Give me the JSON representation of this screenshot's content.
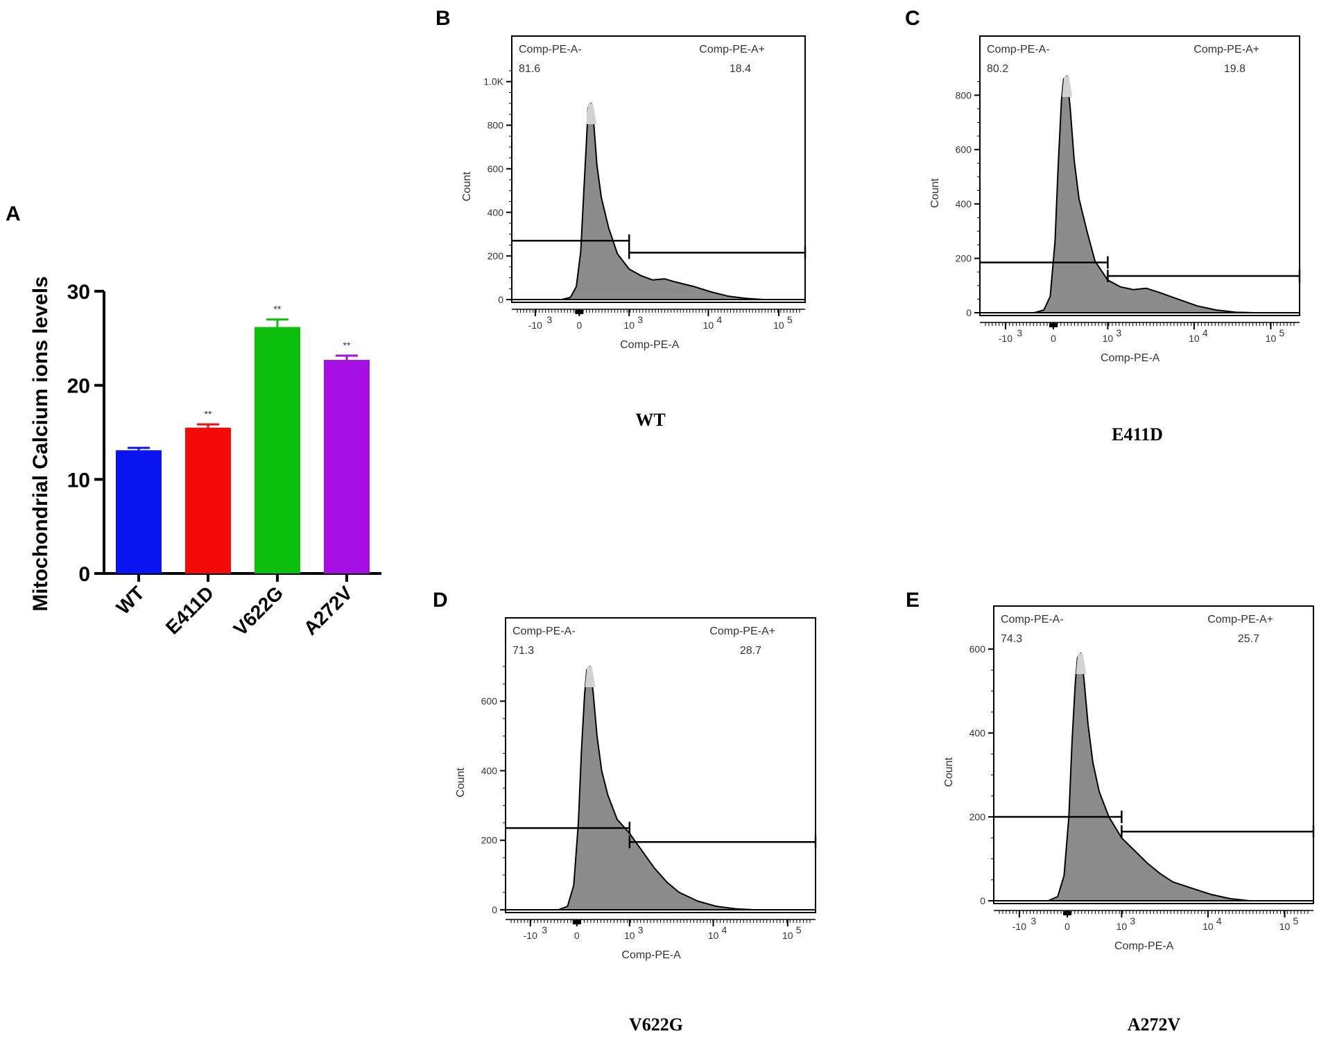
{
  "panel_a": {
    "letter": "A",
    "chart_data": {
      "type": "bar",
      "title": "",
      "xlabel": "",
      "ylabel": "Mitochondrial Calcium ions levels",
      "ylim": [
        0,
        30
      ],
      "yticks": [
        0,
        10,
        20,
        30
      ],
      "categories": [
        "WT",
        "E411D",
        "V622G",
        "A272V"
      ],
      "values": [
        13.1,
        15.5,
        26.2,
        22.7
      ],
      "errors": [
        0.25,
        0.35,
        0.8,
        0.45
      ],
      "significance": [
        "",
        "**",
        "**",
        "**"
      ],
      "colors": [
        "#0A14F0",
        "#F50A0A",
        "#0CBE0C",
        "#A50FE1"
      ]
    }
  },
  "flow_panels": [
    {
      "letter": "B",
      "caption": "WT",
      "chart_data": {
        "type": "area",
        "xlabel": "Comp-PE-A",
        "ylabel": "Count",
        "y_max": 1050,
        "yticks": [
          {
            "value": 0,
            "label": "0"
          },
          {
            "value": 200,
            "label": "200"
          },
          {
            "value": 400,
            "label": "400"
          },
          {
            "value": 600,
            "label": "600"
          },
          {
            "value": 800,
            "label": "800"
          },
          {
            "value": 1000,
            "label": "1.0K"
          }
        ],
        "gate_neg_label": "Comp-PE-A-",
        "gate_neg_value": "81.6",
        "gate_pos_label": "Comp-PE-A+",
        "gate_pos_value": "18.4",
        "gate_neg_height": 270,
        "gate_pos_height": 215,
        "histogram": [
          [
            0.0,
            0
          ],
          [
            0.17,
            0
          ],
          [
            0.2,
            10
          ],
          [
            0.22,
            60
          ],
          [
            0.235,
            220
          ],
          [
            0.245,
            480
          ],
          [
            0.255,
            740
          ],
          [
            0.26,
            880
          ],
          [
            0.27,
            900
          ],
          [
            0.28,
            800
          ],
          [
            0.29,
            620
          ],
          [
            0.305,
            470
          ],
          [
            0.33,
            330
          ],
          [
            0.36,
            210
          ],
          [
            0.4,
            140
          ],
          [
            0.44,
            110
          ],
          [
            0.48,
            90
          ],
          [
            0.52,
            95
          ],
          [
            0.56,
            80
          ],
          [
            0.62,
            60
          ],
          [
            0.68,
            35
          ],
          [
            0.74,
            15
          ],
          [
            0.8,
            5
          ],
          [
            0.86,
            0
          ],
          [
            1.0,
            0
          ]
        ]
      }
    },
    {
      "letter": "C",
      "caption": "E411D",
      "chart_data": {
        "type": "area",
        "xlabel": "Comp-PE-A",
        "ylabel": "Count",
        "y_max": 890,
        "yticks": [
          {
            "value": 0,
            "label": "0"
          },
          {
            "value": 200,
            "label": "200"
          },
          {
            "value": 400,
            "label": "400"
          },
          {
            "value": 600,
            "label": "600"
          },
          {
            "value": 800,
            "label": "800"
          }
        ],
        "gate_neg_label": "Comp-PE-A-",
        "gate_neg_value": "80.2",
        "gate_pos_label": "Comp-PE-A+",
        "gate_pos_value": "19.8",
        "gate_neg_height": 185,
        "gate_pos_height": 135,
        "histogram": [
          [
            0.0,
            0
          ],
          [
            0.17,
            0
          ],
          [
            0.2,
            10
          ],
          [
            0.22,
            60
          ],
          [
            0.235,
            260
          ],
          [
            0.245,
            540
          ],
          [
            0.255,
            780
          ],
          [
            0.262,
            860
          ],
          [
            0.272,
            870
          ],
          [
            0.282,
            760
          ],
          [
            0.295,
            560
          ],
          [
            0.31,
            420
          ],
          [
            0.335,
            300
          ],
          [
            0.36,
            190
          ],
          [
            0.4,
            120
          ],
          [
            0.44,
            95
          ],
          [
            0.48,
            85
          ],
          [
            0.52,
            90
          ],
          [
            0.56,
            75
          ],
          [
            0.62,
            50
          ],
          [
            0.68,
            25
          ],
          [
            0.74,
            10
          ],
          [
            0.8,
            2
          ],
          [
            0.86,
            0
          ],
          [
            1.0,
            0
          ]
        ]
      }
    },
    {
      "letter": "D",
      "caption": "V622G",
      "chart_data": {
        "type": "area",
        "xlabel": "Comp-PE-A",
        "ylabel": "Count",
        "y_max": 740,
        "yticks": [
          {
            "value": 0,
            "label": "0"
          },
          {
            "value": 200,
            "label": "200"
          },
          {
            "value": 400,
            "label": "400"
          },
          {
            "value": 600,
            "label": "600"
          }
        ],
        "gate_neg_label": "Comp-PE-A-",
        "gate_neg_value": "71.3",
        "gate_pos_label": "Comp-PE-A+",
        "gate_pos_value": "28.7",
        "gate_neg_height": 235,
        "gate_pos_height": 195,
        "histogram": [
          [
            0.0,
            0
          ],
          [
            0.17,
            0
          ],
          [
            0.2,
            10
          ],
          [
            0.22,
            70
          ],
          [
            0.235,
            250
          ],
          [
            0.245,
            460
          ],
          [
            0.255,
            620
          ],
          [
            0.262,
            690
          ],
          [
            0.272,
            700
          ],
          [
            0.282,
            630
          ],
          [
            0.295,
            500
          ],
          [
            0.31,
            400
          ],
          [
            0.33,
            330
          ],
          [
            0.36,
            260
          ],
          [
            0.4,
            220
          ],
          [
            0.44,
            170
          ],
          [
            0.48,
            120
          ],
          [
            0.52,
            80
          ],
          [
            0.56,
            50
          ],
          [
            0.62,
            25
          ],
          [
            0.68,
            10
          ],
          [
            0.74,
            3
          ],
          [
            0.8,
            0
          ],
          [
            1.0,
            0
          ]
        ]
      }
    },
    {
      "letter": "E",
      "caption": "A272V",
      "chart_data": {
        "type": "area",
        "xlabel": "Comp-PE-A",
        "ylabel": "Count",
        "y_max": 620,
        "yticks": [
          {
            "value": 0,
            "label": "0"
          },
          {
            "value": 200,
            "label": "200"
          },
          {
            "value": 400,
            "label": "400"
          },
          {
            "value": 600,
            "label": "600"
          }
        ],
        "gate_neg_label": "Comp-PE-A-",
        "gate_neg_value": "74.3",
        "gate_pos_label": "Comp-PE-A+",
        "gate_pos_value": "25.7",
        "gate_neg_height": 200,
        "gate_pos_height": 165,
        "histogram": [
          [
            0.0,
            0
          ],
          [
            0.17,
            0
          ],
          [
            0.2,
            10
          ],
          [
            0.22,
            60
          ],
          [
            0.235,
            200
          ],
          [
            0.245,
            380
          ],
          [
            0.255,
            520
          ],
          [
            0.262,
            580
          ],
          [
            0.272,
            590
          ],
          [
            0.282,
            530
          ],
          [
            0.295,
            420
          ],
          [
            0.31,
            330
          ],
          [
            0.33,
            260
          ],
          [
            0.36,
            200
          ],
          [
            0.4,
            150
          ],
          [
            0.44,
            120
          ],
          [
            0.48,
            90
          ],
          [
            0.52,
            65
          ],
          [
            0.56,
            45
          ],
          [
            0.62,
            30
          ],
          [
            0.68,
            15
          ],
          [
            0.74,
            5
          ],
          [
            0.8,
            0
          ],
          [
            1.0,
            0
          ]
        ]
      }
    }
  ],
  "x_axis_ticks": [
    {
      "base": "-10",
      "exp": "3"
    },
    {
      "base": "0",
      "exp": ""
    },
    {
      "base": "10",
      "exp": "3"
    },
    {
      "base": "10",
      "exp": "4"
    },
    {
      "base": "10",
      "exp": "5"
    }
  ],
  "colors": {
    "histogram_fill": "#8C8C8C",
    "histogram_peak": "#D2D2D2",
    "ink": "#000000"
  }
}
